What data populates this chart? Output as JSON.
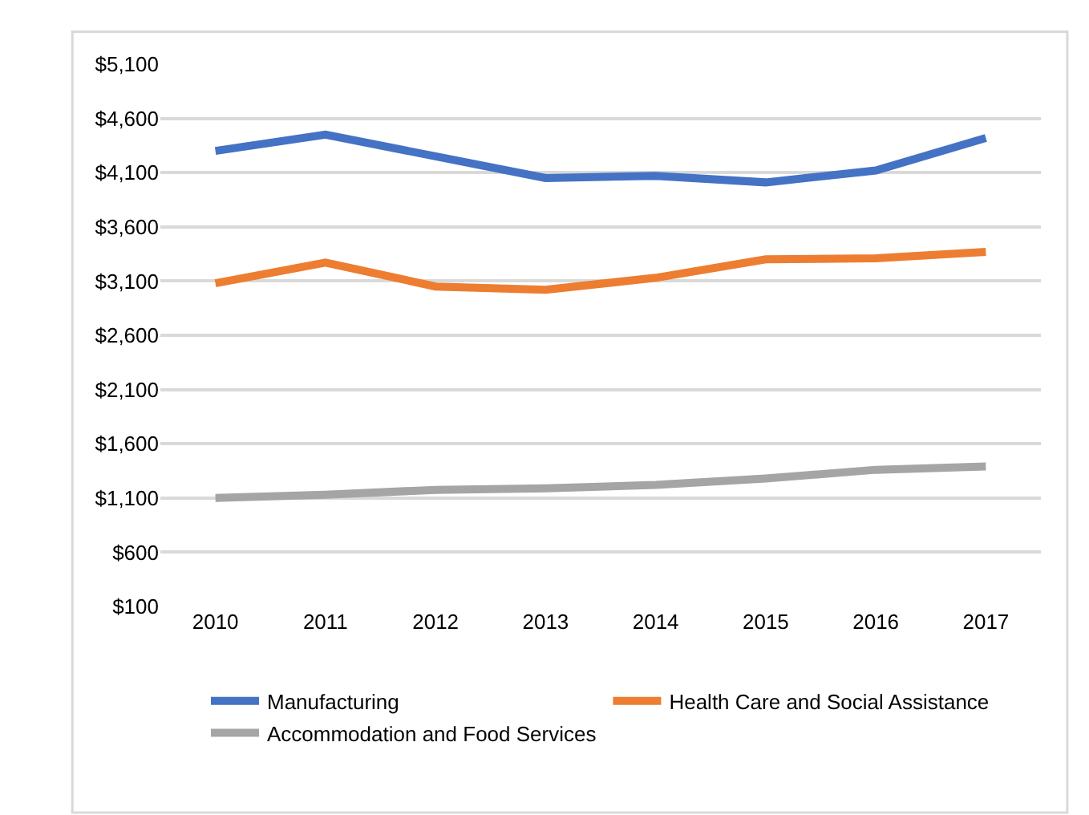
{
  "chart_data": {
    "type": "line",
    "categories": [
      "2010",
      "2011",
      "2012",
      "2013",
      "2014",
      "2015",
      "2016",
      "2017"
    ],
    "series": [
      {
        "name": "Manufacturing",
        "color": "#4472c4",
        "values": [
          4300,
          4450,
          4250,
          4050,
          4070,
          4010,
          4120,
          4420
        ]
      },
      {
        "name": "Health Care and Social Assistance",
        "color": "#ed7d31",
        "values": [
          3080,
          3270,
          3050,
          3020,
          3130,
          3300,
          3310,
          3370
        ]
      },
      {
        "name": "Accommodation and Food Services",
        "color": "#a5a5a5",
        "values": [
          1100,
          1130,
          1175,
          1190,
          1220,
          1280,
          1360,
          1390
        ]
      }
    ],
    "ylim": [
      100,
      5100
    ],
    "yticks": [
      {
        "value": 100,
        "label": "$100"
      },
      {
        "value": 600,
        "label": "$600"
      },
      {
        "value": 1100,
        "label": "$1,100"
      },
      {
        "value": 1600,
        "label": "$1,600"
      },
      {
        "value": 2100,
        "label": "$2,100"
      },
      {
        "value": 2600,
        "label": "$2,600"
      },
      {
        "value": 3100,
        "label": "$3,100"
      },
      {
        "value": 3600,
        "label": "$3,600"
      },
      {
        "value": 4100,
        "label": "$4,100"
      },
      {
        "value": 4600,
        "label": "$4,600"
      },
      {
        "value": 5100,
        "label": "$5,100"
      }
    ],
    "grid": "y",
    "legend": "bottom",
    "marker": "none",
    "line_style": "solid"
  }
}
